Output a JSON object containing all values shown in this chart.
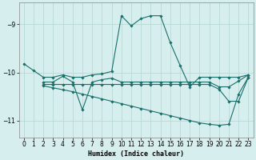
{
  "xlabel": "Humidex (Indice chaleur)",
  "xlim": [
    -0.5,
    23.5
  ],
  "ylim": [
    -11.35,
    -8.55
  ],
  "yticks": [
    -11,
    -10,
    -9
  ],
  "xticks": [
    0,
    1,
    2,
    3,
    4,
    5,
    6,
    7,
    8,
    9,
    10,
    11,
    12,
    13,
    14,
    15,
    16,
    17,
    18,
    19,
    20,
    21,
    22,
    23
  ],
  "bg_color": "#d6efee",
  "grid_color": "#b8d8d5",
  "line_color": "#1a6e6a",
  "lines": [
    {
      "x": [
        0,
        1,
        2,
        3,
        4,
        5,
        6,
        7,
        8,
        9,
        10,
        11,
        12,
        13,
        14,
        15,
        16,
        17,
        18,
        19,
        20,
        21,
        22,
        23
      ],
      "y": [
        -9.82,
        -9.96,
        -10.1,
        -10.1,
        -10.05,
        -10.1,
        -10.1,
        -10.05,
        -10.03,
        -9.98,
        -8.82,
        -9.03,
        -8.88,
        -8.82,
        -8.82,
        -9.38,
        -9.85,
        -10.3,
        -10.1,
        -10.1,
        -10.1,
        -10.1,
        -10.1,
        -10.05
      ]
    },
    {
      "x": [
        2,
        3,
        4,
        5,
        6,
        7,
        8,
        9,
        10,
        11,
        12,
        13,
        14,
        15,
        16,
        17,
        18,
        19,
        20,
        21,
        22,
        23
      ],
      "y": [
        -10.2,
        -10.2,
        -10.08,
        -10.2,
        -10.78,
        -10.2,
        -10.15,
        -10.12,
        -10.2,
        -10.2,
        -10.2,
        -10.2,
        -10.2,
        -10.2,
        -10.2,
        -10.2,
        -10.2,
        -10.2,
        -10.3,
        -10.3,
        -10.18,
        -10.05
      ]
    },
    {
      "x": [
        2,
        3,
        4,
        5,
        6,
        7,
        8,
        9,
        10,
        11,
        12,
        13,
        14,
        15,
        16,
        17,
        18,
        19,
        20,
        21,
        22,
        23
      ],
      "y": [
        -10.25,
        -10.25,
        -10.25,
        -10.25,
        -10.25,
        -10.25,
        -10.25,
        -10.25,
        -10.25,
        -10.25,
        -10.25,
        -10.25,
        -10.25,
        -10.25,
        -10.25,
        -10.25,
        -10.25,
        -10.25,
        -10.35,
        -10.6,
        -10.6,
        -10.1
      ]
    },
    {
      "x": [
        2,
        3,
        4,
        5,
        6,
        7,
        8,
        9,
        10,
        11,
        12,
        13,
        14,
        15,
        16,
        17,
        18,
        19,
        20,
        21,
        22,
        23
      ],
      "y": [
        -10.28,
        -10.32,
        -10.36,
        -10.4,
        -10.45,
        -10.5,
        -10.55,
        -10.6,
        -10.65,
        -10.7,
        -10.75,
        -10.8,
        -10.85,
        -10.9,
        -10.95,
        -11.0,
        -11.05,
        -11.08,
        -11.1,
        -11.08,
        -10.45,
        -10.1
      ]
    }
  ]
}
